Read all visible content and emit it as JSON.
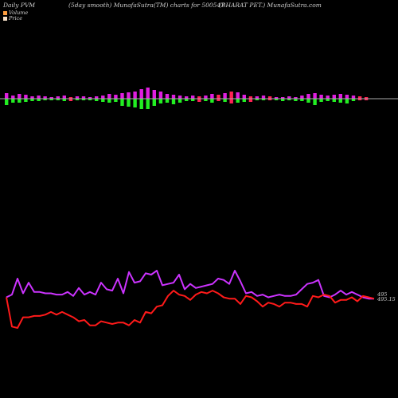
{
  "header": {
    "left": "Daily PVM",
    "center": "(5day smooth) MunafaSutra(TM) charts for 500547",
    "right": "(BHARAT PET.) MunafaSutra.com"
  },
  "legend": [
    {
      "label": "Volume",
      "color": "#ff9f40"
    },
    {
      "label": "Price",
      "color": "#f5e0c8"
    }
  ],
  "colors": {
    "background": "#000000",
    "price_line": "#ff1a1a",
    "pvm_line": "#cc33ff",
    "volume_up": "#e01fe0",
    "volume_down": "#22ee22",
    "volume_neutral": "#ff2255",
    "baseline": "#aaaaaa"
  },
  "chart_data": {
    "type": "line",
    "title": "Daily PVM",
    "end_labels": {
      "pvm": "495",
      "price": "495.15"
    },
    "price_series": [
      495,
      473,
      472,
      480,
      480,
      481,
      481,
      482,
      484,
      482,
      484,
      482,
      480,
      477,
      478,
      474,
      474,
      477,
      476,
      475,
      476,
      476,
      474,
      478,
      476,
      484,
      483,
      488,
      489,
      496,
      500,
      497,
      496,
      493,
      497,
      499,
      498,
      500,
      498,
      495,
      494,
      494,
      490,
      496,
      495,
      492,
      488,
      491,
      490,
      488,
      491,
      491,
      490,
      490,
      488,
      496,
      495,
      497,
      496,
      491,
      493,
      493,
      495,
      492,
      496,
      495,
      494
    ],
    "pvm_series": [
      495,
      497,
      509,
      498,
      506,
      499,
      499,
      498,
      498,
      497,
      497,
      499,
      496,
      502,
      497,
      499,
      497,
      506,
      501,
      500,
      509,
      498,
      514,
      506,
      507,
      513,
      512,
      515,
      504,
      505,
      506,
      512,
      501,
      505,
      502,
      503,
      504,
      505,
      509,
      508,
      505,
      515,
      507,
      498,
      499,
      496,
      497,
      495,
      496,
      497,
      496,
      496,
      497,
      501,
      505,
      506,
      508,
      496,
      495,
      497,
      500,
      497,
      499,
      497,
      495,
      494,
      494
    ],
    "volume_bars": [
      {
        "up": 7,
        "down": -8,
        "color": "mixed"
      },
      {
        "up": 4,
        "down": -5,
        "color": "mixed"
      },
      {
        "up": 6,
        "down": -5,
        "color": "mixed"
      },
      {
        "up": 5,
        "down": -4,
        "color": "mixed"
      },
      {
        "up": 3,
        "down": -3,
        "color": "mixed"
      },
      {
        "up": 4,
        "down": -3,
        "color": "mixed"
      },
      {
        "up": 3,
        "down": -2,
        "color": "mixed"
      },
      {
        "up": 2,
        "down": -2,
        "color": "mixed"
      },
      {
        "up": 3,
        "down": -2,
        "color": "mixed"
      },
      {
        "up": 4,
        "down": -3,
        "color": "mixed"
      },
      {
        "up": 2,
        "down": -3,
        "color": "neutral"
      },
      {
        "up": 3,
        "down": -2,
        "color": "mixed"
      },
      {
        "up": 3,
        "down": -2,
        "color": "mixed"
      },
      {
        "up": 2,
        "down": -2,
        "color": "mixed"
      },
      {
        "up": 3,
        "down": -3,
        "color": "mixed"
      },
      {
        "up": 4,
        "down": -4,
        "color": "mixed"
      },
      {
        "up": 6,
        "down": -5,
        "color": "mixed"
      },
      {
        "up": 5,
        "down": -4,
        "color": "mixed"
      },
      {
        "up": 7,
        "down": -9,
        "color": "mixed"
      },
      {
        "up": 8,
        "down": -10,
        "color": "mixed"
      },
      {
        "up": 9,
        "down": -11,
        "color": "mixed"
      },
      {
        "up": 12,
        "down": -13,
        "color": "mixed"
      },
      {
        "up": 14,
        "down": -13,
        "color": "mixed"
      },
      {
        "up": 11,
        "down": -9,
        "color": "mixed"
      },
      {
        "up": 9,
        "down": -6,
        "color": "mixed"
      },
      {
        "up": 6,
        "down": -5,
        "color": "mixed"
      },
      {
        "up": 5,
        "down": -7,
        "color": "mixed"
      },
      {
        "up": 4,
        "down": -5,
        "color": "mixed"
      },
      {
        "up": 3,
        "down": -3,
        "color": "mixed"
      },
      {
        "up": 4,
        "down": -3,
        "color": "mixed"
      },
      {
        "up": 3,
        "down": -4,
        "color": "neutral"
      },
      {
        "up": 4,
        "down": -3,
        "color": "mixed"
      },
      {
        "up": 6,
        "down": -5,
        "color": "mixed"
      },
      {
        "up": 5,
        "down": -3,
        "color": "neutral"
      },
      {
        "up": 7,
        "down": -4,
        "color": "mixed"
      },
      {
        "up": 9,
        "down": -6,
        "color": "neutral"
      },
      {
        "up": 8,
        "down": -5,
        "color": "mixed"
      },
      {
        "up": 5,
        "down": -4,
        "color": "mixed"
      },
      {
        "up": 3,
        "down": -4,
        "color": "neutral"
      },
      {
        "up": 3,
        "down": -2,
        "color": "mixed"
      },
      {
        "up": 4,
        "down": -2,
        "color": "mixed"
      },
      {
        "up": 3,
        "down": -2,
        "color": "neutral"
      },
      {
        "up": 2,
        "down": -2,
        "color": "mixed"
      },
      {
        "up": 2,
        "down": -3,
        "color": "mixed"
      },
      {
        "up": 3,
        "down": -2,
        "color": "mixed"
      },
      {
        "up": 2,
        "down": -3,
        "color": "mixed"
      },
      {
        "up": 4,
        "down": -3,
        "color": "mixed"
      },
      {
        "up": 6,
        "down": -5,
        "color": "mixed"
      },
      {
        "up": 7,
        "down": -8,
        "color": "mixed"
      },
      {
        "up": 5,
        "down": -4,
        "color": "mixed"
      },
      {
        "up": 4,
        "down": -3,
        "color": "mixed"
      },
      {
        "up": 5,
        "down": -4,
        "color": "mixed"
      },
      {
        "up": 6,
        "down": -5,
        "color": "mixed"
      },
      {
        "up": 5,
        "down": -6,
        "color": "mixed"
      },
      {
        "up": 4,
        "down": -3,
        "color": "mixed"
      },
      {
        "up": 3,
        "down": -2,
        "color": "neutral"
      },
      {
        "up": 2,
        "down": -2,
        "color": "neutral"
      }
    ]
  }
}
